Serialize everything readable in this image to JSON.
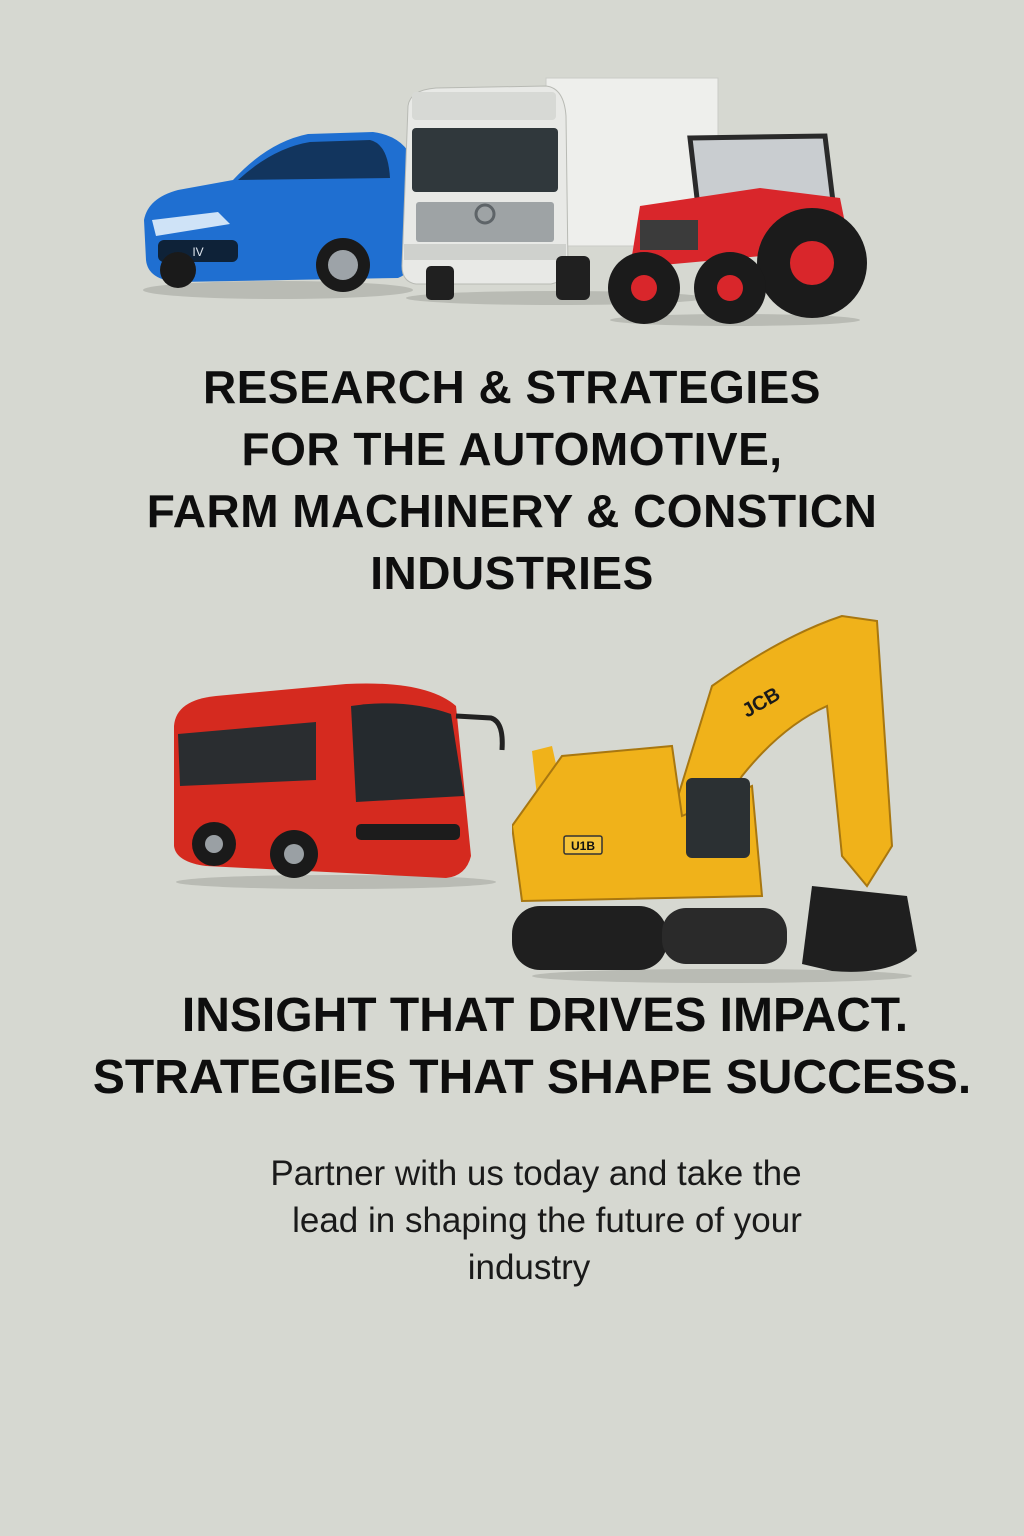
{
  "headline": {
    "line1": "RESEARCH & STRATEGIES",
    "line2": "FOR THE AUTOMOTIVE,",
    "line3": "FARM MACHINERY & CONSTICN",
    "line4": "INDUSTRIES"
  },
  "tagline": {
    "line1": "INSIGHT THAT DRIVES IMPACT.",
    "line2": "STRATEGIES THAT SHAPE SUCCESS."
  },
  "body": {
    "line1": "Partner with us today and take the",
    "line2": "lead in shaping the future of your",
    "line3": "industry"
  },
  "vehicles": {
    "car": {
      "color": "#1f6fd1"
    },
    "truck": {
      "color": "#e8e9e6"
    },
    "tractor": {
      "color": "#d9262b"
    },
    "bus": {
      "color": "#d52a1f"
    },
    "excavator": {
      "color": "#f0b21a",
      "brand": "JCB",
      "model_mark": "U1B"
    }
  }
}
